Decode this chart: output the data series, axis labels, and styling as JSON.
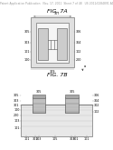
{
  "background_color": "#ffffff",
  "header_text": "Patent Application Publication   Nov. 17, 2011  Sheet 7 of 48   US 2011/0284891 A1",
  "fig7a_title": "FIG. 7A",
  "fig7b_title": "FIG. 7B",
  "header_fontsize": 2.2,
  "title_fontsize": 4.5,
  "line_color": "#666666",
  "label_fontsize": 2.4
}
